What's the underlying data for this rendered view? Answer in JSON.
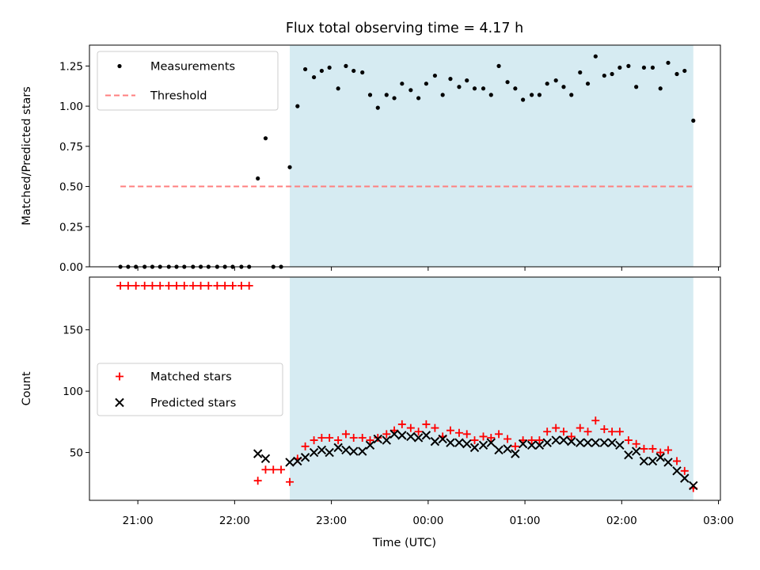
{
  "chart_data": {
    "title": "Flux total observing time = 4.17 h",
    "xlabel": "Time (UTC)",
    "x_unit": "hours UTC, values >= 24 are after midnight",
    "xlim": [
      20.5,
      27.02
    ],
    "x_ticks": [
      {
        "value": 21,
        "label": "21:00"
      },
      {
        "value": 22,
        "label": "22:00"
      },
      {
        "value": 23,
        "label": "23:00"
      },
      {
        "value": 24,
        "label": "00:00"
      },
      {
        "value": 25,
        "label": "01:00"
      },
      {
        "value": 26,
        "label": "02:00"
      },
      {
        "value": 27,
        "label": "03:00"
      }
    ],
    "shaded_region": {
      "x_start": 22.57,
      "x_end": 26.74,
      "color": "#add8e6",
      "alpha": 0.5
    },
    "panels": [
      {
        "type": "scatter",
        "ylabel": "Matched/Predicted stars",
        "ylim": [
          0,
          1.38
        ],
        "y_ticks": [
          "0.00",
          "0.25",
          "0.50",
          "0.75",
          "1.00",
          "1.25"
        ],
        "legend": {
          "placement": "upper left"
        },
        "series": [
          {
            "name": "Measurements",
            "marker": "dot",
            "color": "#000000",
            "points": [
              [
                20.82,
                0
              ],
              [
                20.9,
                0
              ],
              [
                20.98,
                0
              ],
              [
                21.07,
                0
              ],
              [
                21.15,
                0
              ],
              [
                21.23,
                0
              ],
              [
                21.32,
                0
              ],
              [
                21.4,
                0
              ],
              [
                21.48,
                0
              ],
              [
                21.57,
                0
              ],
              [
                21.65,
                0
              ],
              [
                21.73,
                0
              ],
              [
                21.82,
                0
              ],
              [
                21.9,
                0
              ],
              [
                21.98,
                0
              ],
              [
                22.07,
                0
              ],
              [
                22.15,
                0
              ],
              [
                22.24,
                0.55
              ],
              [
                22.32,
                0.8
              ],
              [
                22.4,
                0
              ],
              [
                22.48,
                0
              ],
              [
                22.57,
                0.62
              ],
              [
                22.65,
                1.0
              ],
              [
                22.73,
                1.23
              ],
              [
                22.82,
                1.18
              ],
              [
                22.9,
                1.22
              ],
              [
                22.98,
                1.24
              ],
              [
                23.07,
                1.11
              ],
              [
                23.15,
                1.25
              ],
              [
                23.23,
                1.22
              ],
              [
                23.32,
                1.21
              ],
              [
                23.4,
                1.07
              ],
              [
                23.48,
                0.99
              ],
              [
                23.57,
                1.07
              ],
              [
                23.65,
                1.05
              ],
              [
                23.73,
                1.14
              ],
              [
                23.82,
                1.1
              ],
              [
                23.9,
                1.05
              ],
              [
                23.98,
                1.14
              ],
              [
                24.07,
                1.19
              ],
              [
                24.15,
                1.07
              ],
              [
                24.23,
                1.17
              ],
              [
                24.32,
                1.12
              ],
              [
                24.4,
                1.16
              ],
              [
                24.48,
                1.11
              ],
              [
                24.57,
                1.11
              ],
              [
                24.65,
                1.07
              ],
              [
                24.73,
                1.25
              ],
              [
                24.82,
                1.15
              ],
              [
                24.9,
                1.11
              ],
              [
                24.98,
                1.04
              ],
              [
                25.07,
                1.07
              ],
              [
                25.15,
                1.07
              ],
              [
                25.23,
                1.14
              ],
              [
                25.32,
                1.16
              ],
              [
                25.4,
                1.12
              ],
              [
                25.48,
                1.07
              ],
              [
                25.57,
                1.21
              ],
              [
                25.65,
                1.14
              ],
              [
                25.73,
                1.31
              ],
              [
                25.82,
                1.19
              ],
              [
                25.9,
                1.2
              ],
              [
                25.98,
                1.24
              ],
              [
                26.07,
                1.25
              ],
              [
                26.15,
                1.12
              ],
              [
                26.23,
                1.24
              ],
              [
                26.32,
                1.24
              ],
              [
                26.4,
                1.11
              ],
              [
                26.48,
                1.27
              ],
              [
                26.57,
                1.2
              ],
              [
                26.65,
                1.22
              ],
              [
                26.74,
                0.91
              ]
            ]
          },
          {
            "name": "Threshold",
            "type": "line",
            "style": "dashed",
            "color": "#ff7f7f",
            "x": [
              20.82,
              26.74
            ],
            "y": [
              0.5,
              0.5
            ]
          }
        ]
      },
      {
        "type": "scatter",
        "ylabel": "Count",
        "ylim": [
          11,
          193
        ],
        "y_ticks": [
          "50",
          "100",
          "150"
        ],
        "legend": {
          "placement": "center left"
        },
        "series": [
          {
            "name": "Matched stars",
            "marker": "plus",
            "color": "#ff0000",
            "points": [
              [
                20.82,
                186
              ],
              [
                20.9,
                186
              ],
              [
                20.98,
                186
              ],
              [
                21.07,
                186
              ],
              [
                21.15,
                186
              ],
              [
                21.23,
                186
              ],
              [
                21.32,
                186
              ],
              [
                21.4,
                186
              ],
              [
                21.48,
                186
              ],
              [
                21.57,
                186
              ],
              [
                21.65,
                186
              ],
              [
                21.73,
                186
              ],
              [
                21.82,
                186
              ],
              [
                21.9,
                186
              ],
              [
                21.98,
                186
              ],
              [
                22.07,
                186
              ],
              [
                22.15,
                186
              ],
              [
                22.24,
                27
              ],
              [
                22.32,
                36
              ],
              [
                22.4,
                36
              ],
              [
                22.48,
                36
              ],
              [
                22.57,
                26
              ],
              [
                22.65,
                45
              ],
              [
                22.73,
                55
              ],
              [
                22.82,
                60
              ],
              [
                22.9,
                62
              ],
              [
                22.98,
                62
              ],
              [
                23.07,
                60
              ],
              [
                23.15,
                65
              ],
              [
                23.23,
                62
              ],
              [
                23.32,
                62
              ],
              [
                23.4,
                60
              ],
              [
                23.48,
                62
              ],
              [
                23.57,
                65
              ],
              [
                23.65,
                68
              ],
              [
                23.73,
                73
              ],
              [
                23.82,
                70
              ],
              [
                23.9,
                67
              ],
              [
                23.98,
                73
              ],
              [
                24.07,
                70
              ],
              [
                24.15,
                63
              ],
              [
                24.23,
                68
              ],
              [
                24.32,
                66
              ],
              [
                24.4,
                65
              ],
              [
                24.48,
                60
              ],
              [
                24.57,
                63
              ],
              [
                24.65,
                62
              ],
              [
                24.73,
                65
              ],
              [
                24.82,
                61
              ],
              [
                24.9,
                55
              ],
              [
                24.98,
                60
              ],
              [
                25.07,
                60
              ],
              [
                25.15,
                60
              ],
              [
                25.23,
                67
              ],
              [
                25.32,
                70
              ],
              [
                25.4,
                67
              ],
              [
                25.48,
                63
              ],
              [
                25.57,
                70
              ],
              [
                25.65,
                67
              ],
              [
                25.73,
                76
              ],
              [
                25.82,
                69
              ],
              [
                25.9,
                67
              ],
              [
                25.98,
                67
              ],
              [
                26.07,
                60
              ],
              [
                26.15,
                57
              ],
              [
                26.23,
                53
              ],
              [
                26.32,
                53
              ],
              [
                26.4,
                50
              ],
              [
                26.48,
                52
              ],
              [
                26.57,
                43
              ],
              [
                26.65,
                35
              ],
              [
                26.74,
                21
              ]
            ]
          },
          {
            "name": "Predicted stars",
            "marker": "x",
            "color": "#000000",
            "points": [
              [
                22.24,
                49
              ],
              [
                22.32,
                45
              ],
              [
                22.57,
                42
              ],
              [
                22.65,
                43
              ],
              [
                22.73,
                46
              ],
              [
                22.82,
                50
              ],
              [
                22.9,
                52
              ],
              [
                22.98,
                50
              ],
              [
                23.07,
                54
              ],
              [
                23.15,
                52
              ],
              [
                23.23,
                51
              ],
              [
                23.32,
                51
              ],
              [
                23.4,
                56
              ],
              [
                23.48,
                61
              ],
              [
                23.57,
                60
              ],
              [
                23.65,
                65
              ],
              [
                23.73,
                64
              ],
              [
                23.82,
                63
              ],
              [
                23.9,
                62
              ],
              [
                23.98,
                64
              ],
              [
                24.07,
                59
              ],
              [
                24.15,
                61
              ],
              [
                24.23,
                58
              ],
              [
                24.32,
                58
              ],
              [
                24.4,
                57
              ],
              [
                24.48,
                54
              ],
              [
                24.57,
                56
              ],
              [
                24.65,
                58
              ],
              [
                24.73,
                52
              ],
              [
                24.82,
                53
              ],
              [
                24.9,
                49
              ],
              [
                24.98,
                57
              ],
              [
                25.07,
                56
              ],
              [
                25.15,
                56
              ],
              [
                25.23,
                58
              ],
              [
                25.32,
                60
              ],
              [
                25.4,
                60
              ],
              [
                25.48,
                59
              ],
              [
                25.57,
                58
              ],
              [
                25.65,
                58
              ],
              [
                25.73,
                58
              ],
              [
                25.82,
                58
              ],
              [
                25.9,
                58
              ],
              [
                25.98,
                56
              ],
              [
                26.07,
                48
              ],
              [
                26.15,
                51
              ],
              [
                26.23,
                43
              ],
              [
                26.32,
                43
              ],
              [
                26.4,
                46
              ],
              [
                26.48,
                42
              ],
              [
                26.57,
                35
              ],
              [
                26.65,
                29
              ],
              [
                26.74,
                23
              ]
            ]
          }
        ]
      }
    ]
  }
}
